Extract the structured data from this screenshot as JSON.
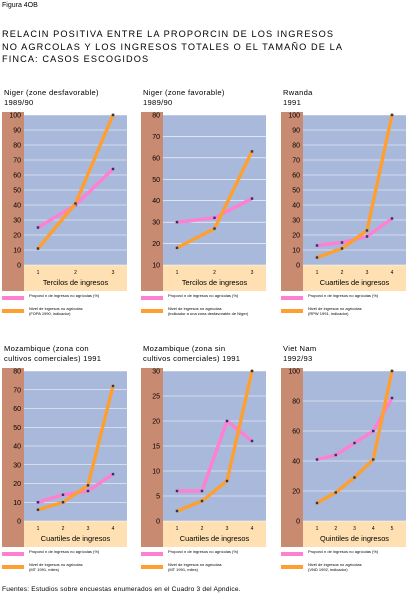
{
  "figure_label": "Figura 4OB",
  "title_lines": [
    "RELACIN POSITIVA ENTRE LA PROPORCIN DE LOS INGRESOS",
    "NO AGRCOLAS Y LOS INGRESOS TOTALES O EL TAMAÑO DE LA",
    "FINCA: CASOS ESCOGIDOS"
  ],
  "source": "Fuentes: Estudios sobre encuestas enumerados en el Cuadro 3 del Apndice.",
  "colors": {
    "plot_bg": "#a9b9db",
    "axis_band": "#c98a72",
    "tick_band": "#ffe0b2",
    "proportion_line": "#ff7fd0",
    "income_line": "#ff9f2f",
    "marker": "#1a3a70"
  },
  "chart_data": [
    {
      "type": "line",
      "title_lines": [
        "Niger (zone desfavorable)",
        "1989/90"
      ],
      "xlabel": "Tercilos de ingresos",
      "categories": [
        "1",
        "2",
        "3"
      ],
      "ylim": [
        0,
        100
      ],
      "yticks": [
        0,
        10,
        20,
        30,
        40,
        50,
        60,
        70,
        80,
        90,
        100
      ],
      "series": [
        {
          "name": "Proporci n de ingresos no agrícolas (%)",
          "role": "proportion",
          "values": [
            25,
            40,
            64
          ]
        },
        {
          "name": "Nivel de ingresos no agrícolas",
          "role": "income",
          "values": [
            11,
            41,
            100
          ]
        }
      ],
      "legend_source": "(FOPA 1990, indicador)"
    },
    {
      "type": "line",
      "title_lines": [
        "Niger (zone favorable)",
        "1989/90"
      ],
      "xlabel": "Tercilos de ingresos",
      "categories": [
        "1",
        "2",
        "3"
      ],
      "ylim": [
        10,
        80
      ],
      "yticks": [
        10,
        20,
        30,
        40,
        50,
        60,
        70,
        80
      ],
      "series": [
        {
          "name": "Proporci n de ingresos no agrícolas (%)",
          "role": "proportion",
          "values": [
            30,
            32,
            41
          ]
        },
        {
          "name": "Nivel de ingresos no agrícolas",
          "role": "income",
          "values": [
            18,
            27,
            63
          ]
        }
      ],
      "legend_source": "(indicador a una zona desfavorable de Níger)"
    },
    {
      "type": "line",
      "title_lines": [
        "Rwanda",
        "1991"
      ],
      "xlabel": "Cuartiles de ingresos",
      "categories": [
        "1",
        "2",
        "3",
        "4"
      ],
      "ylim": [
        0,
        100
      ],
      "yticks": [
        0,
        10,
        20,
        30,
        40,
        50,
        60,
        70,
        80,
        90,
        100
      ],
      "series": [
        {
          "name": "Proporci n de ingresos no agrícolas (%)",
          "role": "proportion",
          "values": [
            13,
            15,
            19,
            31
          ]
        },
        {
          "name": "Nivel de ingresos no agrícolas",
          "role": "income",
          "values": [
            5,
            11,
            23,
            100
          ]
        }
      ],
      "legend_source": "(RPW 1991, indicador)"
    },
    {
      "type": "line",
      "title_lines": [
        "Mozambique (zona con",
        "cultivos comerciales)   1991"
      ],
      "xlabel": "Cuartiles de ingresos",
      "categories": [
        "1",
        "2",
        "3",
        "4"
      ],
      "ylim": [
        0,
        80
      ],
      "yticks": [
        0,
        10,
        20,
        30,
        40,
        50,
        60,
        70,
        80
      ],
      "series": [
        {
          "name": "Proporci n de ingresos no agrícolas (%)",
          "role": "proportion",
          "values": [
            10,
            14,
            16,
            25
          ]
        },
        {
          "name": "Nivel de ingresos no agrícolas",
          "role": "income",
          "values": [
            6,
            10,
            19,
            72
          ]
        }
      ],
      "legend_source": "(MT 1991, miles)"
    },
    {
      "type": "line",
      "title_lines": [
        "Mozambique (zona sin",
        "cultivos comerciales)   1991"
      ],
      "xlabel": "Cuartiles de ingresos",
      "categories": [
        "1",
        "2",
        "3",
        "4"
      ],
      "ylim": [
        0,
        30
      ],
      "yticks": [
        0,
        5,
        10,
        15,
        20,
        25,
        30
      ],
      "series": [
        {
          "name": "Proporci n de ingresos no agrícolas (%)",
          "role": "proportion",
          "values": [
            6,
            6,
            20,
            16
          ]
        },
        {
          "name": "Nivel de ingresos no agrícolas",
          "role": "income",
          "values": [
            2,
            4,
            8,
            30
          ]
        }
      ],
      "legend_source": "(MT 1991, miles)"
    },
    {
      "type": "line",
      "title_lines": [
        "Viet Nam",
        "1992/93"
      ],
      "xlabel": "Quintiles de ingresos",
      "categories": [
        "1",
        "2",
        "3",
        "4",
        "5"
      ],
      "ylim": [
        0,
        100
      ],
      "yticks": [
        0,
        20,
        40,
        60,
        80,
        100
      ],
      "series": [
        {
          "name": "Proporci n de ingresos no agrícolas (%)",
          "role": "proportion",
          "values": [
            41,
            44,
            52,
            60,
            82
          ]
        },
        {
          "name": "Nivel de ingresos no agrícolas",
          "role": "income",
          "values": [
            12,
            19,
            29,
            41,
            100
          ]
        }
      ],
      "legend_source": "(VND 1992, indicador)"
    }
  ]
}
